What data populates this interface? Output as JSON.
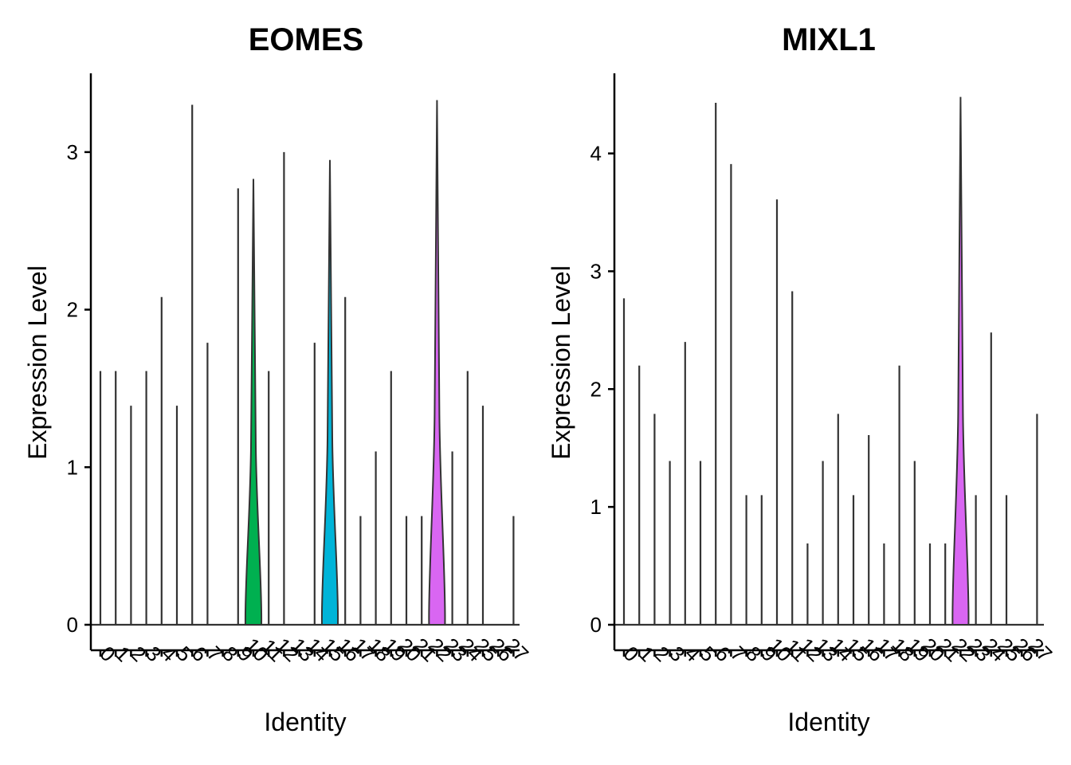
{
  "chart_data": [
    {
      "type": "violin",
      "title": "EOMES",
      "xlabel": "Identity",
      "ylabel": "Expression Level",
      "categories": [
        "0",
        "1",
        "2",
        "3",
        "4",
        "5",
        "6",
        "7",
        "8",
        "9",
        "10",
        "11",
        "12",
        "13",
        "14",
        "15",
        "16",
        "17",
        "18",
        "19",
        "20",
        "21",
        "22",
        "23",
        "24",
        "25",
        "26",
        "27"
      ],
      "max_values": [
        1.61,
        1.61,
        1.39,
        1.61,
        2.08,
        1.39,
        3.3,
        1.79,
        0,
        2.77,
        2.83,
        1.61,
        3.0,
        0,
        1.79,
        2.95,
        2.08,
        0.69,
        1.1,
        1.61,
        0.69,
        0.69,
        3.33,
        1.1,
        1.61,
        1.39,
        0,
        0.69
      ],
      "filled": {
        "10": "#00B050",
        "15": "#00B4D8",
        "22": "#D966F2"
      },
      "ylim": [
        -0.16,
        3.5
      ],
      "yticks": [
        0,
        1,
        2,
        3
      ],
      "grid": false
    },
    {
      "type": "violin",
      "title": "MIXL1",
      "xlabel": "Identity",
      "ylabel": "Expression Level",
      "categories": [
        "0",
        "1",
        "2",
        "3",
        "4",
        "5",
        "6",
        "7",
        "8",
        "9",
        "10",
        "11",
        "12",
        "13",
        "14",
        "15",
        "16",
        "17",
        "18",
        "19",
        "20",
        "21",
        "22",
        "23",
        "24",
        "25",
        "26",
        "27"
      ],
      "max_values": [
        2.77,
        2.2,
        1.79,
        1.39,
        2.4,
        1.39,
        4.43,
        3.91,
        1.1,
        1.1,
        3.61,
        2.83,
        0.69,
        1.39,
        1.79,
        1.1,
        1.61,
        0.69,
        2.2,
        1.39,
        0.69,
        0.69,
        4.48,
        1.1,
        2.48,
        1.1,
        0,
        1.79
      ],
      "filled": {
        "22": "#D966F2"
      },
      "ylim": [
        -0.22,
        4.68
      ],
      "yticks": [
        0,
        1,
        2,
        3,
        4
      ],
      "grid": false
    }
  ]
}
